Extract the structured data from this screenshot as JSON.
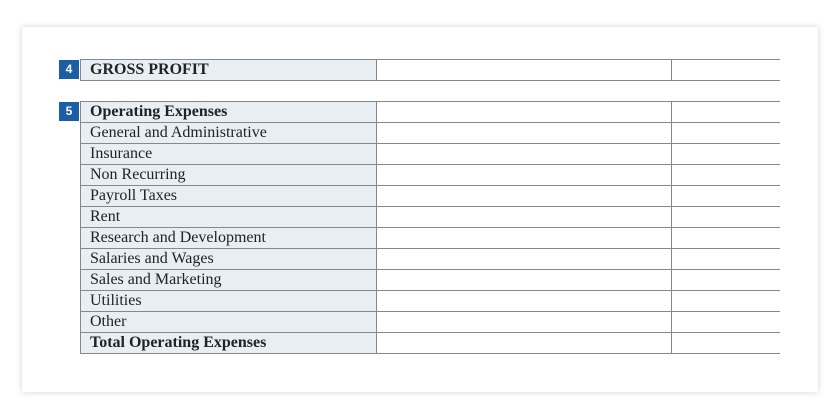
{
  "colors": {
    "label_fill": "#e8eff4",
    "badge_fill": "#1b5ea3",
    "grid_line": "#888888"
  },
  "sections": [
    {
      "number": "4",
      "rows": [
        {
          "label": "GROSS PROFIT",
          "bold": true
        }
      ]
    },
    {
      "number": "5",
      "rows": [
        {
          "label": "Operating Expenses",
          "bold": true
        },
        {
          "label": "General and Administrative",
          "bold": false
        },
        {
          "label": "Insurance",
          "bold": false
        },
        {
          "label": "Non Recurring",
          "bold": false
        },
        {
          "label": "Payroll Taxes",
          "bold": false
        },
        {
          "label": "Rent",
          "bold": false
        },
        {
          "label": "Research and Development",
          "bold": false
        },
        {
          "label": "Salaries and Wages",
          "bold": false
        },
        {
          "label": "Sales and Marketing",
          "bold": false
        },
        {
          "label": "Utilities",
          "bold": false
        },
        {
          "label": "Other",
          "bold": false
        },
        {
          "label": "Total Operating Expenses",
          "bold": true
        }
      ]
    }
  ]
}
